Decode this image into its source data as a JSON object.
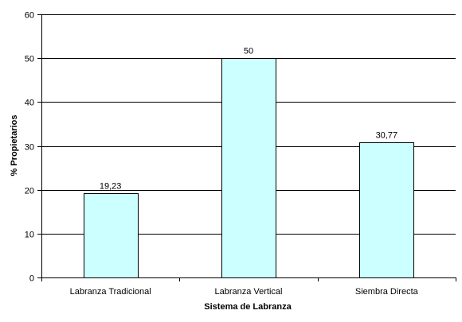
{
  "chart_data": {
    "type": "bar",
    "title": "",
    "xlabel": "Sistema de Labranza",
    "ylabel": "% Propietarios",
    "categories": [
      "Labranza Tradicional",
      "Labranza Vertical",
      "Siembra Directa"
    ],
    "values": [
      19.23,
      50,
      30.77
    ],
    "data_labels": [
      "19,23",
      "50",
      "30,77"
    ],
    "ylim": [
      0,
      60
    ],
    "yticks": [
      0,
      10,
      20,
      30,
      40,
      50,
      60
    ],
    "grid": true,
    "legend": "none",
    "colors": {
      "bar_fill": "#ccffff",
      "bar_stroke": "#000000",
      "grid": "#000000",
      "axis": "#000000"
    }
  }
}
